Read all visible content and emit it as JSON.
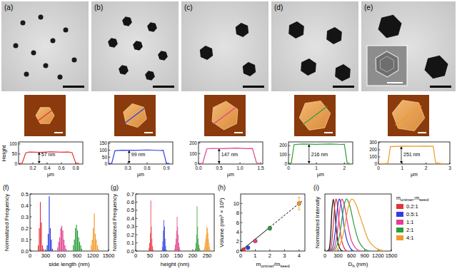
{
  "images": [
    {
      "label": "(a)"
    },
    {
      "label": "(b)"
    },
    {
      "label": "(c)"
    },
    {
      "label": "(d)"
    },
    {
      "label": "(e)"
    }
  ],
  "profiles_ylabel": "Height",
  "chart_data": [
    {
      "type": "line",
      "xlabel": "μm",
      "color": "#e8303a",
      "x": [
        0,
        0.05,
        0.1,
        0.15,
        0.3,
        0.45,
        0.6,
        0.7,
        0.75,
        0.8,
        0.85
      ],
      "values": [
        2,
        4,
        55,
        60,
        58,
        61,
        59,
        60,
        56,
        5,
        2
      ],
      "xlim": [
        0,
        0.9
      ],
      "ylim": [
        0,
        110
      ],
      "xticks": [
        0.2,
        0.4,
        0.6,
        0.8
      ],
      "yticks": [
        0,
        50,
        100
      ],
      "annotations": [
        "57 nm"
      ]
    },
    {
      "type": "line",
      "xlabel": "μm",
      "color": "#2f3fe0",
      "x": [
        0,
        0.05,
        0.1,
        0.2,
        0.4,
        0.6,
        0.8,
        0.85,
        0.9,
        0.95
      ],
      "values": [
        3,
        6,
        96,
        100,
        99,
        102,
        98,
        100,
        6,
        3
      ],
      "xlim": [
        0,
        1.0
      ],
      "ylim": [
        0,
        160
      ],
      "xticks": [
        0.3,
        0.6,
        0.9
      ],
      "yticks": [
        0,
        50,
        100,
        150
      ],
      "annotations": [
        "99 nm"
      ]
    },
    {
      "type": "line",
      "xlabel": "μm",
      "color": "#e0408f",
      "x": [
        0,
        0.1,
        0.2,
        0.3,
        0.6,
        0.9,
        1.2,
        1.3,
        1.4,
        1.5
      ],
      "values": [
        5,
        8,
        144,
        149,
        147,
        151,
        146,
        148,
        10,
        5
      ],
      "xlim": [
        0,
        1.55
      ],
      "ylim": [
        0,
        210
      ],
      "xticks": [
        {
          "value": 0,
          "label": "0.0"
        },
        0.5,
        {
          "value": 1,
          "label": "1.0"
        },
        1.5
      ],
      "yticks": [
        0,
        100,
        200
      ],
      "annotations": [
        "147 nm"
      ]
    },
    {
      "type": "line",
      "xlabel": "μm",
      "color": "#2e9e3a",
      "x": [
        0,
        0.1,
        0.2,
        0.5,
        1.0,
        1.5,
        1.9,
        2.0,
        2.1,
        2.2
      ],
      "values": [
        5,
        10,
        211,
        217,
        214,
        218,
        213,
        215,
        10,
        5
      ],
      "xlim": [
        0,
        2.3
      ],
      "ylim": [
        0,
        240
      ],
      "xticks": [
        0,
        1,
        2
      ],
      "yticks": [
        0,
        100,
        200
      ],
      "annotations": [
        "216 nm"
      ]
    },
    {
      "type": "line",
      "xlabel": "μm",
      "color": "#f39a26",
      "x": [
        0,
        0.3,
        0.4,
        0.5,
        1.0,
        1.5,
        2.0,
        2.3,
        2.4,
        2.6,
        2.8
      ],
      "values": [
        5,
        8,
        15,
        244,
        251,
        249,
        252,
        248,
        20,
        8,
        5
      ],
      "xlim": [
        0,
        3.0
      ],
      "ylim": [
        0,
        310
      ],
      "xticks": [
        0,
        1,
        2,
        3
      ],
      "yticks": [
        0,
        100,
        200,
        300
      ],
      "annotations": [
        "251 nm"
      ]
    },
    {
      "type": "histogram",
      "title": "(f)",
      "xlabel": "side length (nm)",
      "ylabel": "Normalized Frequency",
      "xlim": [
        0,
        1500
      ],
      "ylim": [
        0,
        0.5
      ],
      "xticks": [
        0,
        300,
        600,
        900,
        1200,
        1500
      ],
      "yticks": [
        {
          "value": 0,
          "label": "0.0"
        },
        0.1,
        0.2,
        0.3,
        0.4,
        0.5
      ],
      "series": [
        {
          "color": "#e8303a",
          "bins": [
            150,
            170,
            190,
            210,
            230,
            250,
            270
          ],
          "values": [
            0.05,
            0.2,
            0.43,
            0.25,
            0.05,
            0.02
          ]
        },
        {
          "color": "#2f3fe0",
          "bins": [
            320,
            340,
            360,
            380,
            400,
            420,
            440
          ],
          "values": [
            0.05,
            0.15,
            0.48,
            0.2,
            0.1,
            0.02
          ]
        },
        {
          "color": "#e0408f",
          "bins": [
            520,
            540,
            560,
            580,
            600,
            620,
            640,
            660,
            680,
            700
          ],
          "values": [
            0.03,
            0.08,
            0.12,
            0.2,
            0.22,
            0.18,
            0.1,
            0.05,
            0.02
          ]
        },
        {
          "color": "#2e9e3a",
          "bins": [
            820,
            840,
            860,
            880,
            900,
            920,
            940,
            960,
            980,
            1000
          ],
          "values": [
            0.05,
            0.1,
            0.2,
            0.23,
            0.18,
            0.12,
            0.08,
            0.05,
            0.02
          ]
        },
        {
          "color": "#f39a26",
          "bins": [
            1160,
            1180,
            1200,
            1220,
            1240,
            1260,
            1280,
            1300,
            1320
          ],
          "values": [
            0.05,
            0.1,
            0.2,
            0.33,
            0.15,
            0.1,
            0.05,
            0.02
          ]
        }
      ]
    },
    {
      "type": "histogram",
      "title": "(g)",
      "xlabel": "height (nm)",
      "ylabel": "Normalized Frequency",
      "xlim": [
        0,
        275
      ],
      "ylim": [
        0,
        0.7
      ],
      "xticks": [
        0,
        50,
        100,
        150,
        200,
        250
      ],
      "yticks": [
        {
          "value": 0,
          "label": "0.0"
        },
        0.1,
        0.2,
        0.3,
        0.4,
        0.5,
        0.6,
        0.7
      ],
      "series": [
        {
          "color": "#e8303a",
          "bins": [
            46,
            48,
            50,
            52,
            54,
            56,
            58,
            60,
            62
          ],
          "values": [
            0.04,
            0.1,
            0.22,
            0.62,
            0.3,
            0.15,
            0.06,
            0.02
          ]
        },
        {
          "color": "#2f3fe0",
          "bins": [
            92,
            94,
            96,
            98,
            100,
            102,
            104,
            106,
            108
          ],
          "values": [
            0.05,
            0.12,
            0.25,
            0.38,
            0.3,
            0.15,
            0.06,
            0.02
          ]
        },
        {
          "color": "#e0408f",
          "bins": [
            136,
            138,
            140,
            142,
            144,
            146,
            148,
            150,
            152,
            154,
            156
          ],
          "values": [
            0.03,
            0.08,
            0.15,
            0.25,
            0.42,
            0.3,
            0.2,
            0.1,
            0.05,
            0.02
          ]
        },
        {
          "color": "#2e9e3a",
          "bins": [
            208,
            210,
            212,
            214,
            216,
            218,
            220,
            222,
            224,
            226
          ],
          "values": [
            0.03,
            0.1,
            0.2,
            0.55,
            0.3,
            0.15,
            0.08,
            0.04,
            0.02
          ]
        },
        {
          "color": "#f39a26",
          "bins": [
            238,
            240,
            242,
            244,
            246,
            248,
            250,
            252,
            254,
            256,
            258,
            260,
            262
          ],
          "values": [
            0.02,
            0.05,
            0.1,
            0.15,
            0.2,
            0.3,
            0.28,
            0.22,
            0.15,
            0.1,
            0.05,
            0.02
          ]
        }
      ]
    },
    {
      "type": "scatter",
      "title": "(h)",
      "xlabel": "munimer/mseed",
      "ylabel": "Volume (nm³ × 10⁶)",
      "xlim": [
        0,
        4.4
      ],
      "ylim": [
        0,
        12
      ],
      "xticks": [
        0,
        1,
        2,
        3,
        4
      ],
      "yticks": [
        0,
        2,
        4,
        6,
        8,
        10
      ],
      "series": [
        {
          "type": "scatter",
          "marker": "circle",
          "x": [
            0.2,
            0.5,
            1,
            2,
            4
          ],
          "values": [
            0.3,
            0.7,
            2.1,
            4.8,
            10.0
          ],
          "errors": [
            0.05,
            0.1,
            0.15,
            0.4,
            1.3
          ],
          "colors": [
            "#e8303a",
            "#2f3fe0",
            "#e0408f",
            "#2e9e3a",
            "#f39a26"
          ]
        },
        {
          "type": "line",
          "line_style": "solid",
          "color": "#000000",
          "x": [
            0,
            2
          ],
          "values": [
            0,
            5.0
          ]
        },
        {
          "type": "line",
          "line_style": "dashed",
          "color": "#000000",
          "x": [
            2,
            4.2
          ],
          "values": [
            5.0,
            10.5
          ]
        }
      ]
    },
    {
      "type": "line",
      "title": "(i)",
      "xlabel": "Dh (nm)",
      "ylabel": "Normalized Intensity",
      "xlim": [
        0,
        1500
      ],
      "ylim": [
        0,
        1.1
      ],
      "xticks": [
        0,
        300,
        600,
        900,
        1200,
        1500
      ],
      "tick_labels": "x",
      "legend": "right",
      "legend_title": "munimer:mseed",
      "series": [
        {
          "color": "#000000",
          "x": [
            50,
            100,
            130,
            160,
            190,
            220,
            260,
            300,
            350,
            400
          ],
          "values": [
            0,
            0.05,
            0.3,
            0.8,
            1.0,
            0.8,
            0.4,
            0.15,
            0.03,
            0
          ]
        },
        {
          "name": "0.2:1",
          "color": "#e8303a",
          "x": [
            80,
            140,
            180,
            220,
            250,
            280,
            330,
            380,
            440,
            500
          ],
          "values": [
            0,
            0.08,
            0.4,
            0.85,
            1.0,
            0.9,
            0.5,
            0.2,
            0.05,
            0
          ]
        },
        {
          "name": "0.5:1",
          "color": "#2f3fe0",
          "x": [
            100,
            180,
            230,
            280,
            320,
            370,
            430,
            500,
            580,
            650
          ],
          "values": [
            0,
            0.08,
            0.35,
            0.8,
            1.0,
            0.88,
            0.5,
            0.2,
            0.05,
            0
          ]
        },
        {
          "name": "1:1",
          "color": "#e0408f",
          "x": [
            120,
            220,
            280,
            340,
            380,
            440,
            520,
            600,
            700,
            800
          ],
          "values": [
            0,
            0.08,
            0.35,
            0.82,
            1.0,
            0.88,
            0.5,
            0.2,
            0.05,
            0
          ]
        },
        {
          "name": "2:1",
          "color": "#2e9e3a",
          "x": [
            150,
            260,
            340,
            420,
            480,
            560,
            660,
            760,
            880,
            1000
          ],
          "values": [
            0,
            0.08,
            0.35,
            0.82,
            1.0,
            0.88,
            0.5,
            0.2,
            0.05,
            0
          ]
        },
        {
          "name": "4:1",
          "color": "#f39a26",
          "x": [
            180,
            320,
            420,
            520,
            600,
            700,
            840,
            980,
            1150,
            1350
          ],
          "values": [
            0,
            0.08,
            0.35,
            0.82,
            1.0,
            0.9,
            0.55,
            0.22,
            0.06,
            0
          ]
        }
      ]
    }
  ]
}
